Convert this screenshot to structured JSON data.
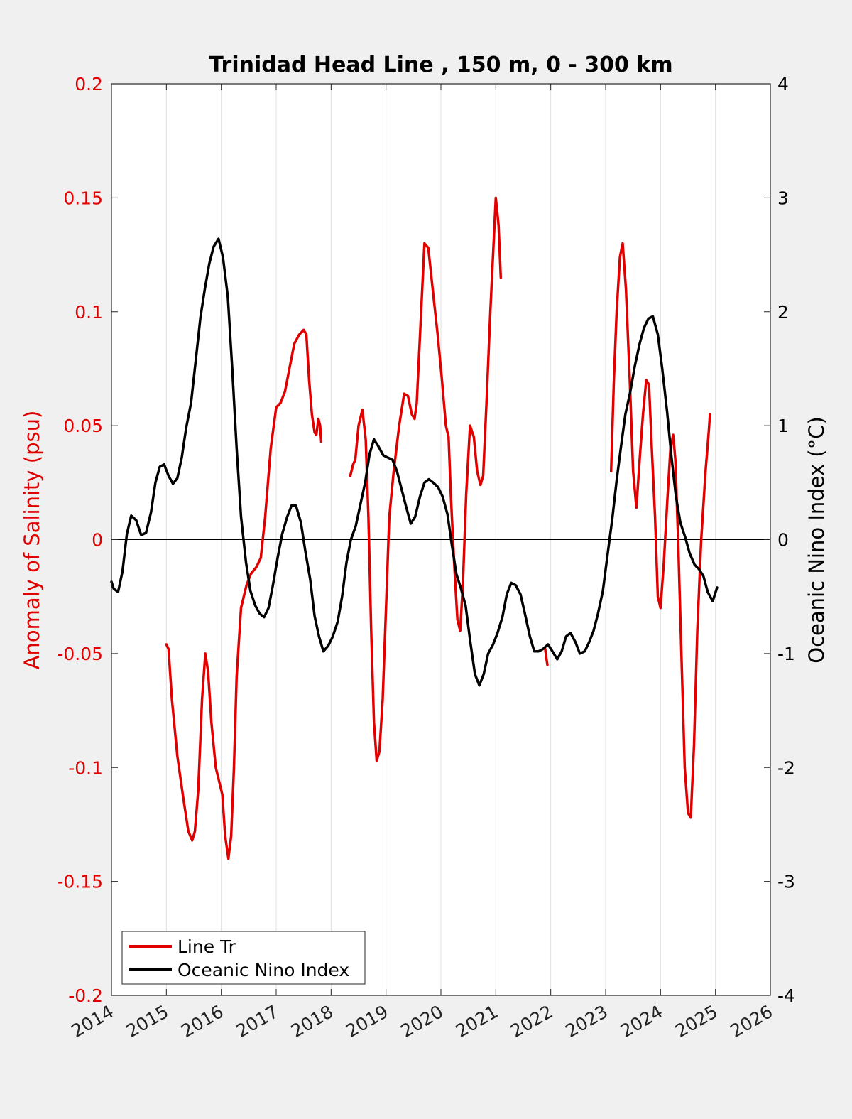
{
  "chart_data": {
    "type": "line",
    "title": "Trinidad Head Line , 150 m, 0 - 300 km",
    "ylabel_left": "Anomaly of Salinity (psu)",
    "ylabel_right": "Oceanic Nino Index (°C)",
    "xlim": [
      2014,
      2026
    ],
    "ylim_left": [
      -0.2,
      0.2
    ],
    "ylim_right": [
      -4,
      4
    ],
    "x_ticks": [
      "2014",
      "2015",
      "2016",
      "2017",
      "2018",
      "2019",
      "2020",
      "2021",
      "2022",
      "2023",
      "2024",
      "2025",
      "2026"
    ],
    "y_ticks_left": [
      "0.2",
      "0.15",
      "0.1",
      "0.05",
      "0",
      "-0.05",
      "-0.1",
      "-0.15",
      "-0.2"
    ],
    "y_ticks_right": [
      "4",
      "3",
      "2",
      "1",
      "0",
      "-1",
      "-2",
      "-3",
      "-4"
    ],
    "grid_x": true,
    "legend_location": "bottom-left",
    "colors": {
      "salinity": "#e00000",
      "oni": "#000000",
      "grid": "#e0e0e0"
    },
    "series": [
      {
        "name": "Line Tr",
        "axis": "left",
        "segments": [
          [
            [
              2015.0,
              -0.046
            ],
            [
              2015.04,
              -0.048
            ],
            [
              2015.1,
              -0.07
            ],
            [
              2015.2,
              -0.095
            ],
            [
              2015.3,
              -0.112
            ],
            [
              2015.4,
              -0.128
            ],
            [
              2015.47,
              -0.132
            ],
            [
              2015.52,
              -0.128
            ],
            [
              2015.58,
              -0.11
            ],
            [
              2015.65,
              -0.07
            ],
            [
              2015.71,
              -0.05
            ],
            [
              2015.76,
              -0.058
            ],
            [
              2015.82,
              -0.08
            ],
            [
              2015.9,
              -0.1
            ],
            [
              2015.96,
              -0.106
            ],
            [
              2016.02,
              -0.112
            ],
            [
              2016.07,
              -0.13
            ],
            [
              2016.13,
              -0.14
            ],
            [
              2016.18,
              -0.13
            ],
            [
              2016.23,
              -0.1
            ],
            [
              2016.28,
              -0.06
            ],
            [
              2016.36,
              -0.03
            ],
            [
              2016.46,
              -0.02
            ],
            [
              2016.54,
              -0.015
            ],
            [
              2016.64,
              -0.012
            ],
            [
              2016.72,
              -0.008
            ],
            [
              2016.8,
              0.01
            ],
            [
              2016.9,
              0.04
            ],
            [
              2017.0,
              0.058
            ],
            [
              2017.08,
              0.06
            ],
            [
              2017.16,
              0.065
            ],
            [
              2017.24,
              0.075
            ],
            [
              2017.33,
              0.086
            ],
            [
              2017.42,
              0.09
            ],
            [
              2017.5,
              0.092
            ],
            [
              2017.55,
              0.09
            ],
            [
              2017.6,
              0.07
            ],
            [
              2017.65,
              0.055
            ],
            [
              2017.7,
              0.047
            ],
            [
              2017.73,
              0.046
            ],
            [
              2017.77,
              0.053
            ],
            [
              2017.8,
              0.05
            ],
            [
              2017.82,
              0.043
            ]
          ],
          [
            [
              2018.35,
              0.028
            ],
            [
              2018.4,
              0.033
            ],
            [
              2018.44,
              0.035
            ],
            [
              2018.5,
              0.05
            ],
            [
              2018.57,
              0.057
            ],
            [
              2018.63,
              0.044
            ],
            [
              2018.68,
              0.01
            ],
            [
              2018.73,
              -0.04
            ],
            [
              2018.78,
              -0.08
            ],
            [
              2018.83,
              -0.097
            ],
            [
              2018.88,
              -0.093
            ],
            [
              2018.94,
              -0.07
            ],
            [
              2019.0,
              -0.03
            ],
            [
              2019.06,
              0.01
            ],
            [
              2019.14,
              0.03
            ],
            [
              2019.24,
              0.05
            ],
            [
              2019.33,
              0.064
            ],
            [
              2019.4,
              0.063
            ],
            [
              2019.47,
              0.055
            ],
            [
              2019.52,
              0.053
            ],
            [
              2019.56,
              0.06
            ],
            [
              2019.62,
              0.09
            ],
            [
              2019.7,
              0.13
            ],
            [
              2019.77,
              0.128
            ],
            [
              2019.85,
              0.11
            ],
            [
              2019.94,
              0.09
            ],
            [
              2020.02,
              0.07
            ],
            [
              2020.09,
              0.05
            ],
            [
              2020.14,
              0.045
            ],
            [
              2020.18,
              0.02
            ],
            [
              2020.24,
              -0.01
            ],
            [
              2020.3,
              -0.035
            ],
            [
              2020.35,
              -0.04
            ],
            [
              2020.4,
              -0.02
            ],
            [
              2020.46,
              0.02
            ],
            [
              2020.53,
              0.05
            ],
            [
              2020.6,
              0.045
            ],
            [
              2020.66,
              0.03
            ],
            [
              2020.72,
              0.024
            ],
            [
              2020.77,
              0.028
            ],
            [
              2020.83,
              0.06
            ],
            [
              2020.9,
              0.1
            ],
            [
              2020.96,
              0.13
            ],
            [
              2021.0,
              0.15
            ],
            [
              2021.05,
              0.138
            ],
            [
              2021.09,
              0.115
            ]
          ],
          [
            [
              2021.9,
              -0.048
            ],
            [
              2021.92,
              -0.052
            ],
            [
              2021.94,
              -0.055
            ]
          ],
          [
            [
              2023.1,
              0.03
            ],
            [
              2023.15,
              0.07
            ],
            [
              2023.2,
              0.1
            ],
            [
              2023.26,
              0.124
            ],
            [
              2023.31,
              0.13
            ],
            [
              2023.37,
              0.11
            ],
            [
              2023.44,
              0.07
            ],
            [
              2023.5,
              0.03
            ],
            [
              2023.56,
              0.014
            ],
            [
              2023.62,
              0.035
            ],
            [
              2023.68,
              0.055
            ],
            [
              2023.74,
              0.07
            ],
            [
              2023.79,
              0.068
            ],
            [
              2023.84,
              0.04
            ],
            [
              2023.9,
              0.01
            ],
            [
              2023.95,
              -0.025
            ],
            [
              2024.0,
              -0.03
            ],
            [
              2024.06,
              -0.01
            ],
            [
              2024.13,
              0.02
            ],
            [
              2024.18,
              0.04
            ],
            [
              2024.23,
              0.046
            ],
            [
              2024.27,
              0.035
            ],
            [
              2024.32,
              0.0
            ],
            [
              2024.38,
              -0.05
            ],
            [
              2024.44,
              -0.1
            ],
            [
              2024.5,
              -0.12
            ],
            [
              2024.55,
              -0.122
            ],
            [
              2024.61,
              -0.09
            ],
            [
              2024.67,
              -0.04
            ],
            [
              2024.74,
              0.0
            ],
            [
              2024.82,
              0.03
            ],
            [
              2024.88,
              0.048
            ],
            [
              2024.9,
              0.055
            ]
          ]
        ]
      },
      {
        "name": "Oceanic Nino Index",
        "axis": "right",
        "segments": [
          [
            [
              2014.0,
              -0.37
            ],
            [
              2014.04,
              -0.43
            ],
            [
              2014.12,
              -0.46
            ],
            [
              2014.2,
              -0.28
            ],
            [
              2014.28,
              0.05
            ],
            [
              2014.36,
              0.21
            ],
            [
              2014.45,
              0.17
            ],
            [
              2014.54,
              0.04
            ],
            [
              2014.63,
              0.06
            ],
            [
              2014.72,
              0.24
            ],
            [
              2014.8,
              0.5
            ],
            [
              2014.88,
              0.64
            ],
            [
              2014.96,
              0.66
            ],
            [
              2015.04,
              0.56
            ],
            [
              2015.12,
              0.49
            ],
            [
              2015.2,
              0.54
            ],
            [
              2015.28,
              0.72
            ],
            [
              2015.36,
              0.98
            ],
            [
              2015.45,
              1.2
            ],
            [
              2015.53,
              1.55
            ],
            [
              2015.62,
              1.95
            ],
            [
              2015.7,
              2.2
            ],
            [
              2015.78,
              2.42
            ],
            [
              2015.86,
              2.57
            ],
            [
              2015.95,
              2.64
            ],
            [
              2016.03,
              2.48
            ],
            [
              2016.12,
              2.13
            ],
            [
              2016.2,
              1.5
            ],
            [
              2016.28,
              0.8
            ],
            [
              2016.36,
              0.2
            ],
            [
              2016.45,
              -0.2
            ],
            [
              2016.53,
              -0.45
            ],
            [
              2016.62,
              -0.58
            ],
            [
              2016.7,
              -0.65
            ],
            [
              2016.78,
              -0.68
            ],
            [
              2016.86,
              -0.6
            ],
            [
              2016.94,
              -0.4
            ],
            [
              2017.03,
              -0.15
            ],
            [
              2017.11,
              0.05
            ],
            [
              2017.2,
              0.2
            ],
            [
              2017.28,
              0.3
            ],
            [
              2017.36,
              0.3
            ],
            [
              2017.45,
              0.15
            ],
            [
              2017.53,
              -0.1
            ],
            [
              2017.62,
              -0.35
            ],
            [
              2017.7,
              -0.67
            ],
            [
              2017.78,
              -0.85
            ],
            [
              2017.86,
              -0.98
            ],
            [
              2017.95,
              -0.93
            ],
            [
              2018.03,
              -0.85
            ],
            [
              2018.12,
              -0.72
            ],
            [
              2018.2,
              -0.5
            ],
            [
              2018.28,
              -0.2
            ],
            [
              2018.36,
              0.0
            ],
            [
              2018.45,
              0.12
            ],
            [
              2018.53,
              0.3
            ],
            [
              2018.62,
              0.5
            ],
            [
              2018.7,
              0.75
            ],
            [
              2018.78,
              0.88
            ],
            [
              2018.86,
              0.82
            ],
            [
              2018.95,
              0.74
            ],
            [
              2019.03,
              0.72
            ],
            [
              2019.12,
              0.7
            ],
            [
              2019.2,
              0.6
            ],
            [
              2019.28,
              0.45
            ],
            [
              2019.36,
              0.3
            ],
            [
              2019.45,
              0.14
            ],
            [
              2019.53,
              0.2
            ],
            [
              2019.62,
              0.38
            ],
            [
              2019.7,
              0.5
            ],
            [
              2019.78,
              0.53
            ],
            [
              2019.86,
              0.5
            ],
            [
              2019.95,
              0.46
            ],
            [
              2020.03,
              0.38
            ],
            [
              2020.12,
              0.22
            ],
            [
              2020.2,
              -0.05
            ],
            [
              2020.28,
              -0.3
            ],
            [
              2020.36,
              -0.42
            ],
            [
              2020.45,
              -0.58
            ],
            [
              2020.53,
              -0.88
            ],
            [
              2020.62,
              -1.18
            ],
            [
              2020.7,
              -1.28
            ],
            [
              2020.78,
              -1.18
            ],
            [
              2020.86,
              -1.0
            ],
            [
              2020.95,
              -0.92
            ],
            [
              2021.03,
              -0.82
            ],
            [
              2021.12,
              -0.68
            ],
            [
              2021.2,
              -0.48
            ],
            [
              2021.28,
              -0.38
            ],
            [
              2021.36,
              -0.4
            ],
            [
              2021.45,
              -0.48
            ],
            [
              2021.53,
              -0.65
            ],
            [
              2021.62,
              -0.85
            ],
            [
              2021.7,
              -0.98
            ],
            [
              2021.78,
              -0.98
            ],
            [
              2021.86,
              -0.96
            ],
            [
              2021.95,
              -0.92
            ],
            [
              2022.03,
              -0.98
            ],
            [
              2022.12,
              -1.05
            ],
            [
              2022.2,
              -0.98
            ],
            [
              2022.28,
              -0.85
            ],
            [
              2022.36,
              -0.82
            ],
            [
              2022.45,
              -0.9
            ],
            [
              2022.53,
              -1.0
            ],
            [
              2022.62,
              -0.98
            ],
            [
              2022.7,
              -0.9
            ],
            [
              2022.78,
              -0.8
            ],
            [
              2022.86,
              -0.65
            ],
            [
              2022.95,
              -0.45
            ],
            [
              2023.03,
              -0.15
            ],
            [
              2023.12,
              0.18
            ],
            [
              2023.2,
              0.52
            ],
            [
              2023.28,
              0.82
            ],
            [
              2023.36,
              1.1
            ],
            [
              2023.45,
              1.3
            ],
            [
              2023.53,
              1.52
            ],
            [
              2023.62,
              1.72
            ],
            [
              2023.7,
              1.86
            ],
            [
              2023.78,
              1.94
            ],
            [
              2023.86,
              1.96
            ],
            [
              2023.95,
              1.8
            ],
            [
              2024.03,
              1.5
            ],
            [
              2024.12,
              1.12
            ],
            [
              2024.2,
              0.72
            ],
            [
              2024.28,
              0.38
            ],
            [
              2024.36,
              0.15
            ],
            [
              2024.45,
              0.02
            ],
            [
              2024.53,
              -0.12
            ],
            [
              2024.62,
              -0.22
            ],
            [
              2024.7,
              -0.26
            ],
            [
              2024.78,
              -0.32
            ],
            [
              2024.86,
              -0.46
            ],
            [
              2024.95,
              -0.54
            ],
            [
              2025.03,
              -0.42
            ]
          ]
        ]
      }
    ]
  }
}
